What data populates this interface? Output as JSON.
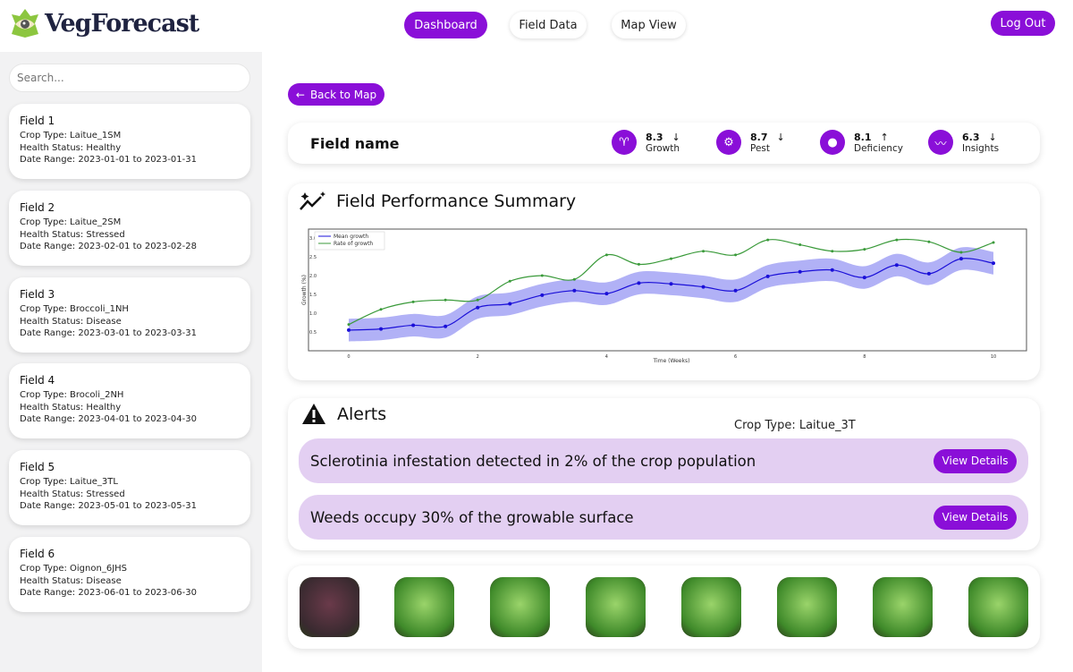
{
  "app": {
    "name": "VegForecast"
  },
  "nav": {
    "dashboard": "Dashboard",
    "field_data": "Field Data",
    "map_view": "Map View",
    "logout": "Log Out"
  },
  "sidebar": {
    "search_placeholder": "Search...",
    "fields": [
      {
        "name": "Field 1",
        "crop": "Crop Type: Laitue_1SM",
        "health": "Health Status: Healthy",
        "range": "Date Range: 2023-01-01 to 2023-01-31"
      },
      {
        "name": "Field 2",
        "crop": "Crop Type: Laitue_2SM",
        "health": "Health Status: Stressed",
        "range": "Date Range: 2023-02-01 to 2023-02-28"
      },
      {
        "name": "Field 3",
        "crop": "Crop Type: Broccoli_1NH",
        "health": "Health Status: Disease",
        "range": "Date Range: 2023-03-01 to 2023-03-31"
      },
      {
        "name": "Field 4",
        "crop": "Crop Type: Brocoli_2NH",
        "health": "Health Status: Healthy",
        "range": "Date Range: 2023-04-01 to 2023-04-30"
      },
      {
        "name": "Field 5",
        "crop": "Crop Type: Laitue_3TL",
        "health": "Health Status: Stressed",
        "range": "Date Range: 2023-05-01 to 2023-05-31"
      },
      {
        "name": "Field 6",
        "crop": "Crop Type: Oignon_6JHS",
        "health": "Health Status: Disease",
        "range": "Date Range: 2023-06-01 to 2023-06-30"
      }
    ]
  },
  "main": {
    "back_label": "Back to Map",
    "field_name": "Field name",
    "metrics": [
      {
        "value": "8.3",
        "trend": "↓",
        "label": "Growth",
        "icon": "sprout-icon"
      },
      {
        "value": "8.7",
        "trend": "↓",
        "label": "Pest",
        "icon": "tractor-icon"
      },
      {
        "value": "8.1",
        "trend": "↑",
        "label": "Deficiency",
        "icon": "drop-icon"
      },
      {
        "value": "6.3",
        "trend": "↓",
        "label": "Insights",
        "icon": "trend-icon"
      }
    ],
    "performance_title": "Field Performance Summary",
    "alerts_title": "Alerts",
    "crop_type": "Crop Type: Laitue_3T",
    "alerts": [
      {
        "text": "Sclerotinia infestation detected in 2% of the crop population",
        "button": "View Details"
      },
      {
        "text": "Weeds occupy 30% of the growable surface",
        "button": "View Details"
      }
    ]
  },
  "colors": {
    "accent": "#8a0fd8",
    "alert_bg": "#e3cff2",
    "mean": "#1a0fd8",
    "band": "#a9a8f5",
    "rate": "#3a9a3a"
  },
  "chart_data": {
    "type": "line",
    "xlabel": "Time (Weeks)",
    "ylabel": "Growth (%)",
    "xlim": [
      0,
      10
    ],
    "ylim": [
      0.1,
      3.15
    ],
    "xticks": [
      "0",
      "2",
      "4",
      "6",
      "8",
      "10"
    ],
    "yticks": [
      "0.5",
      "1.0",
      "1.5",
      "2.0",
      "2.5",
      "3.0"
    ],
    "legend": "top-left",
    "x": [
      0,
      0.5,
      1,
      1.5,
      2,
      2.5,
      3,
      3.5,
      4,
      4.5,
      5,
      5.5,
      6,
      6.5,
      7,
      7.5,
      8,
      8.5,
      9,
      9.5,
      10
    ],
    "series": [
      {
        "name": "Mean growth",
        "values": [
          0.55,
          0.58,
          0.68,
          0.65,
          1.15,
          1.25,
          1.48,
          1.6,
          1.52,
          1.8,
          1.78,
          1.7,
          1.6,
          1.98,
          2.1,
          2.15,
          1.95,
          2.28,
          2.05,
          2.45,
          2.33
        ],
        "band": 0.3
      },
      {
        "name": "Rate of growth",
        "values": [
          0.7,
          1.1,
          1.3,
          1.35,
          1.35,
          1.85,
          2.0,
          1.9,
          2.55,
          2.3,
          2.45,
          2.65,
          2.55,
          2.95,
          2.82,
          2.65,
          2.7,
          2.95,
          2.9,
          2.62,
          2.88
        ]
      }
    ]
  }
}
